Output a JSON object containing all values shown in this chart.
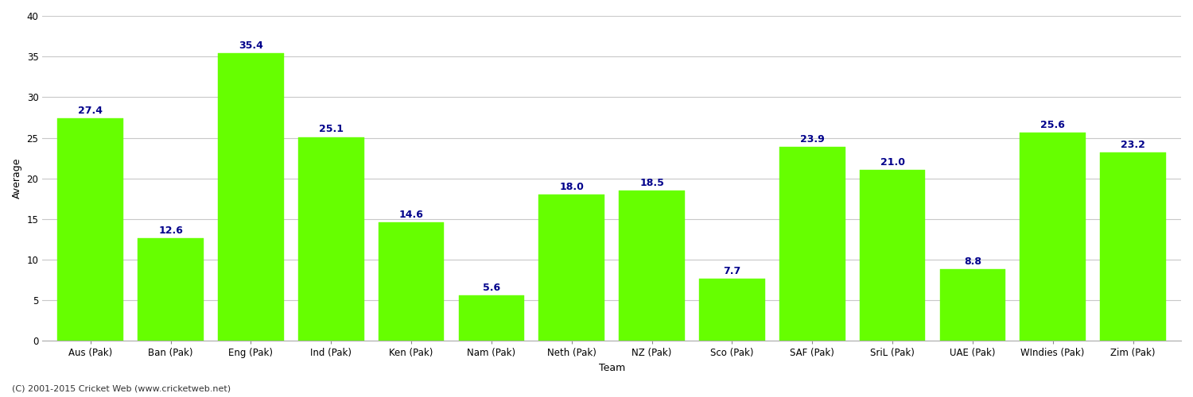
{
  "categories": [
    "Aus (Pak)",
    "Ban (Pak)",
    "Eng (Pak)",
    "Ind (Pak)",
    "Ken (Pak)",
    "Nam (Pak)",
    "Neth (Pak)",
    "NZ (Pak)",
    "Sco (Pak)",
    "SAF (Pak)",
    "SriL (Pak)",
    "UAE (Pak)",
    "WIndies (Pak)",
    "Zim (Pak)"
  ],
  "values": [
    27.4,
    12.6,
    35.4,
    25.1,
    14.6,
    5.6,
    18.0,
    18.5,
    7.7,
    23.9,
    21.0,
    8.8,
    25.6,
    23.2
  ],
  "bar_color": "#66ff00",
  "bar_edge_color": "#66ff00",
  "label_color": "#00008B",
  "xlabel": "Team",
  "ylabel": "Average",
  "ylim": [
    0,
    40
  ],
  "yticks": [
    0,
    5,
    10,
    15,
    20,
    25,
    30,
    35,
    40
  ],
  "background_color": "#ffffff",
  "grid_color": "#c8c8c8",
  "footnote": "(C) 2001-2015 Cricket Web (www.cricketweb.net)",
  "label_fontsize": 9,
  "axis_label_fontsize": 9,
  "tick_fontsize": 8.5,
  "bar_width": 0.82
}
